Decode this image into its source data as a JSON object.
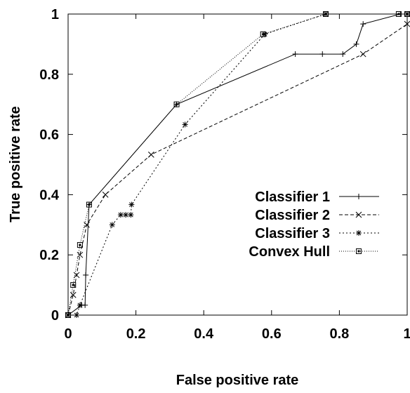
{
  "chart_data": {
    "type": "line",
    "title": "",
    "xlabel": "False positive rate",
    "ylabel": "True positive rate",
    "xlim": [
      0,
      1
    ],
    "ylim": [
      0,
      1
    ],
    "x_ticks": [
      "0",
      "0.2",
      "0.4",
      "0.6",
      "0.8",
      "1"
    ],
    "y_ticks": [
      "0",
      "0.2",
      "0.4",
      "0.6",
      "0.8",
      "1"
    ],
    "grid": false,
    "legend_position": "center-right",
    "series": [
      {
        "name": "Classifier 1",
        "marker": "plus",
        "dash": "solid",
        "points": [
          [
            0,
            0
          ],
          [
            0.04,
            0.033
          ],
          [
            0.05,
            0.033
          ],
          [
            0.052,
            0.133
          ],
          [
            0.062,
            0.367
          ],
          [
            0.32,
            0.7
          ],
          [
            0.67,
            0.867
          ],
          [
            0.75,
            0.867
          ],
          [
            0.81,
            0.867
          ],
          [
            0.85,
            0.9
          ],
          [
            0.87,
            0.967
          ],
          [
            0.98,
            1.0
          ],
          [
            1.0,
            1.0
          ]
        ]
      },
      {
        "name": "Classifier 2",
        "marker": "x",
        "dash": "dashed",
        "points": [
          [
            0,
            0
          ],
          [
            0.015,
            0.067
          ],
          [
            0.025,
            0.133
          ],
          [
            0.035,
            0.2
          ],
          [
            0.055,
            0.3
          ],
          [
            0.11,
            0.4
          ],
          [
            0.245,
            0.533
          ],
          [
            0.87,
            0.867
          ],
          [
            1.0,
            0.967
          ]
        ]
      },
      {
        "name": "Classifier 3",
        "marker": "star",
        "dash": "dotted",
        "points": [
          [
            0,
            0
          ],
          [
            0.025,
            0
          ],
          [
            0.035,
            0.033
          ],
          [
            0.13,
            0.3
          ],
          [
            0.155,
            0.333
          ],
          [
            0.17,
            0.333
          ],
          [
            0.185,
            0.333
          ],
          [
            0.187,
            0.367
          ],
          [
            0.345,
            0.633
          ],
          [
            0.58,
            0.933
          ],
          [
            0.76,
            1.0
          ],
          [
            1.0,
            1.0
          ]
        ]
      },
      {
        "name": "Convex Hull",
        "marker": "square",
        "dash": "finedot",
        "points": [
          [
            0,
            0
          ],
          [
            0.015,
            0.1
          ],
          [
            0.035,
            0.233
          ],
          [
            0.062,
            0.367
          ],
          [
            0.32,
            0.7
          ],
          [
            0.575,
            0.933
          ],
          [
            0.76,
            1.0
          ],
          [
            0.975,
            1.0
          ],
          [
            1.0,
            1.0
          ]
        ]
      }
    ]
  }
}
